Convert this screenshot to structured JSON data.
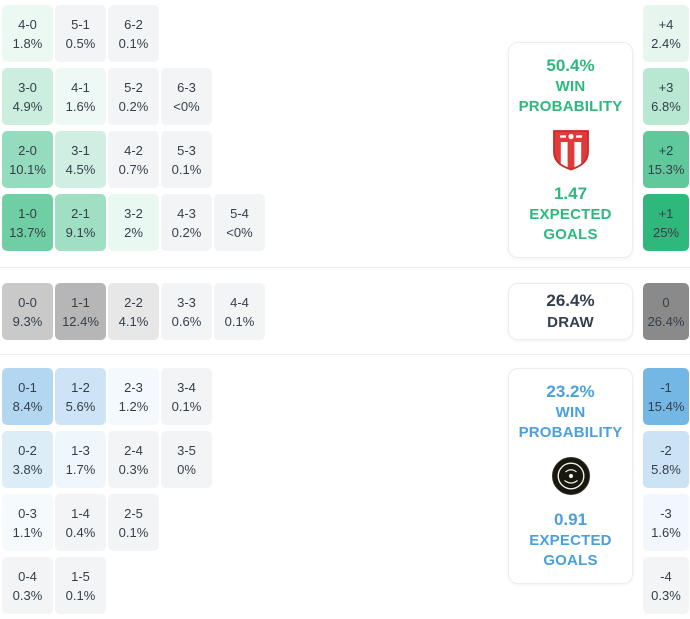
{
  "chart_data": {
    "type": "heatmap",
    "title": "Correct score probability matrix",
    "cell_text_color": "#343f4b",
    "home": {
      "accent": "#2eb87c",
      "win_probability": "50.4%",
      "expected_goals": "1.47",
      "labels": {
        "win1": "WIN",
        "win2": "PROBABILITY",
        "eg1": "EXPECTED",
        "eg2": "GOALS"
      },
      "badge_icon": "red-white-striped-crest",
      "scores": [
        [
          {
            "score": "4-0",
            "pct": "1.8%",
            "v": 1.8
          },
          {
            "score": "5-1",
            "pct": "0.5%",
            "v": 0.5
          },
          {
            "score": "6-2",
            "pct": "0.1%",
            "v": 0.1
          }
        ],
        [
          {
            "score": "3-0",
            "pct": "4.9%",
            "v": 4.9
          },
          {
            "score": "4-1",
            "pct": "1.6%",
            "v": 1.6
          },
          {
            "score": "5-2",
            "pct": "0.2%",
            "v": 0.2
          },
          {
            "score": "6-3",
            "pct": "<0%",
            "v": 0
          }
        ],
        [
          {
            "score": "2-0",
            "pct": "10.1%",
            "v": 10.1
          },
          {
            "score": "3-1",
            "pct": "4.5%",
            "v": 4.5
          },
          {
            "score": "4-2",
            "pct": "0.7%",
            "v": 0.7
          },
          {
            "score": "5-3",
            "pct": "0.1%",
            "v": 0.1
          }
        ],
        [
          {
            "score": "1-0",
            "pct": "13.7%",
            "v": 13.7
          },
          {
            "score": "2-1",
            "pct": "9.1%",
            "v": 9.1
          },
          {
            "score": "3-2",
            "pct": "2%",
            "v": 2
          },
          {
            "score": "4-3",
            "pct": "0.2%",
            "v": 0.2
          },
          {
            "score": "5-4",
            "pct": "<0%",
            "v": 0
          }
        ]
      ],
      "goal_margins": [
        {
          "diff": "+4",
          "pct": "2.4%",
          "v": 2.4
        },
        {
          "diff": "+3",
          "pct": "6.8%",
          "v": 6.8
        },
        {
          "diff": "+2",
          "pct": "15.3%",
          "v": 15.3
        },
        {
          "diff": "+1",
          "pct": "25%",
          "v": 25
        }
      ]
    },
    "draw": {
      "accent": "#8a8a8a",
      "panel_text": "#333f4f",
      "probability": "26.4%",
      "label": "DRAW",
      "scores": [
        [
          {
            "score": "0-0",
            "pct": "9.3%",
            "v": 9.3
          },
          {
            "score": "1-1",
            "pct": "12.4%",
            "v": 12.4
          },
          {
            "score": "2-2",
            "pct": "4.1%",
            "v": 4.1
          },
          {
            "score": "3-3",
            "pct": "0.6%",
            "v": 0.6
          },
          {
            "score": "4-4",
            "pct": "0.1%",
            "v": 0.1
          }
        ]
      ],
      "goal_margins": [
        {
          "diff": "0",
          "pct": "26.4%",
          "v": 26.4
        }
      ]
    },
    "away": {
      "accent": "#4aa0dc",
      "win_probability": "23.2%",
      "expected_goals": "0.91",
      "labels": {
        "win1": "WIN",
        "win2": "PROBABILITY",
        "eg1": "EXPECTED",
        "eg2": "GOALS"
      },
      "badge_icon": "black-white-roundel",
      "scores": [
        [
          {
            "score": "0-1",
            "pct": "8.4%",
            "v": 8.4
          },
          {
            "score": "1-2",
            "pct": "5.6%",
            "v": 5.6
          },
          {
            "score": "2-3",
            "pct": "1.2%",
            "v": 1.2
          },
          {
            "score": "3-4",
            "pct": "0.1%",
            "v": 0.1
          }
        ],
        [
          {
            "score": "0-2",
            "pct": "3.8%",
            "v": 3.8
          },
          {
            "score": "1-3",
            "pct": "1.7%",
            "v": 1.7
          },
          {
            "score": "2-4",
            "pct": "0.3%",
            "v": 0.3
          },
          {
            "score": "3-5",
            "pct": "0%",
            "v": 0
          }
        ],
        [
          {
            "score": "0-3",
            "pct": "1.1%",
            "v": 1.1
          },
          {
            "score": "1-4",
            "pct": "0.4%",
            "v": 0.4
          },
          {
            "score": "2-5",
            "pct": "0.1%",
            "v": 0.1
          }
        ],
        [
          {
            "score": "0-4",
            "pct": "0.3%",
            "v": 0.3
          },
          {
            "score": "1-5",
            "pct": "0.1%",
            "v": 0.1
          }
        ]
      ],
      "goal_margins": [
        {
          "diff": "-1",
          "pct": "15.4%",
          "v": 15.4
        },
        {
          "diff": "-2",
          "pct": "5.8%",
          "v": 5.8
        },
        {
          "diff": "-3",
          "pct": "1.6%",
          "v": 1.6
        },
        {
          "diff": "-4",
          "pct": "0.3%",
          "v": 0.3
        }
      ]
    }
  }
}
